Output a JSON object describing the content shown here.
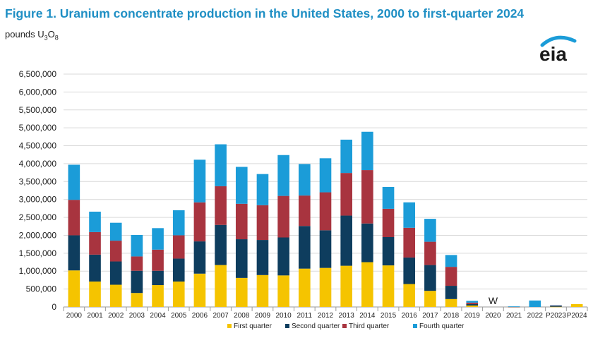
{
  "header": {
    "title": "Figure 1. Uranium concentrate production in the United States, 2000 to first-quarter 2024",
    "units_prefix": "pounds U",
    "units_sub1": "3",
    "units_mid": "O",
    "units_sub2": "8",
    "logo_text": "eia"
  },
  "colors": {
    "first": "#f5c400",
    "second": "#0e3d5e",
    "third": "#a8343f",
    "fourth": "#1b9cd8",
    "title": "#1f8fc4",
    "grid": "#d9d9d9"
  },
  "chart_data": {
    "type": "bar",
    "stacked": true,
    "title": "Figure 1. Uranium concentrate production in the United States, 2000 to first-quarter 2024",
    "ylabel": "pounds U3O8",
    "ylim": [
      0,
      6500000
    ],
    "yticks": [
      0,
      500000,
      1000000,
      1500000,
      2000000,
      2500000,
      3000000,
      3500000,
      4000000,
      4500000,
      5000000,
      5500000,
      6000000,
      6500000
    ],
    "ytick_labels": [
      "0",
      "500,000",
      "1,000,000",
      "1,500,000",
      "2,000,000",
      "2,500,000",
      "3,000,000",
      "3,500,000",
      "4,000,000",
      "4,500,000",
      "5,000,000",
      "5,500,000",
      "6,000,000",
      "6,500,000"
    ],
    "categories": [
      "2000",
      "2001",
      "2002",
      "2003",
      "2004",
      "2005",
      "2006",
      "2007",
      "2008",
      "2009",
      "2010",
      "2011",
      "2012",
      "2013",
      "2014",
      "2015",
      "2016",
      "2017",
      "2018",
      "2019",
      "2020",
      "2021",
      "2022",
      "P2023",
      "P2024"
    ],
    "series": [
      {
        "name": "First quarter",
        "key": "first",
        "values": [
          1020000,
          710000,
          620000,
          390000,
          610000,
          710000,
          930000,
          1170000,
          810000,
          890000,
          880000,
          1070000,
          1090000,
          1150000,
          1250000,
          1160000,
          640000,
          450000,
          220000,
          40000,
          null,
          5000,
          0,
          10000,
          80000
        ]
      },
      {
        "name": "Second quarter",
        "key": "second",
        "values": [
          980000,
          750000,
          650000,
          620000,
          400000,
          640000,
          900000,
          1120000,
          1080000,
          980000,
          1060000,
          1190000,
          1050000,
          1400000,
          1080000,
          790000,
          740000,
          720000,
          370000,
          40000,
          null,
          3000,
          0,
          10000,
          0
        ]
      },
      {
        "name": "Third quarter",
        "key": "third",
        "values": [
          990000,
          630000,
          580000,
          400000,
          590000,
          650000,
          1090000,
          1080000,
          990000,
          970000,
          1160000,
          850000,
          1060000,
          1190000,
          1490000,
          790000,
          830000,
          650000,
          530000,
          40000,
          null,
          3000,
          0,
          20000,
          0
        ]
      },
      {
        "name": "Fourth quarter",
        "key": "fourth",
        "values": [
          980000,
          570000,
          500000,
          600000,
          600000,
          700000,
          1190000,
          1170000,
          1030000,
          870000,
          1140000,
          880000,
          950000,
          930000,
          1070000,
          610000,
          710000,
          640000,
          330000,
          50000,
          null,
          5000,
          180000,
          10000,
          0
        ]
      }
    ],
    "annotations": [
      {
        "category": "2020",
        "text": "W"
      }
    ],
    "legend": [
      "First quarter",
      "Second quarter",
      "Third quarter",
      "Fourth quarter"
    ],
    "legend_position": "bottom",
    "grid": true
  }
}
